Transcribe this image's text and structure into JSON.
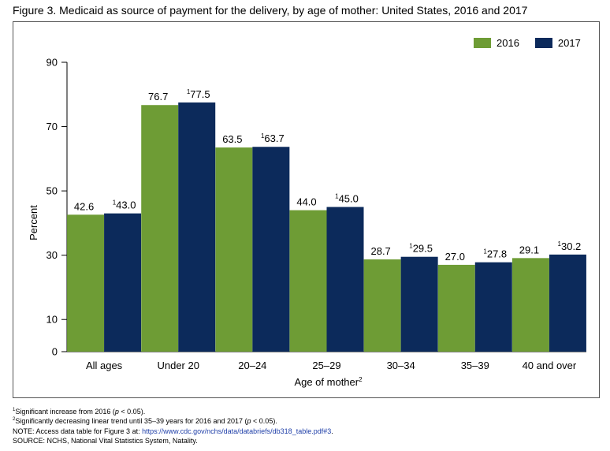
{
  "figure": {
    "title": "Figure 3. Medicaid as source of payment for the delivery, by age of mother: United States, 2016 and 2017"
  },
  "colors": {
    "series_2016": "#6e9c35",
    "series_2017": "#0c2a5b"
  },
  "chart_data": {
    "type": "bar",
    "title": "Figure 3. Medicaid as source of payment for the delivery, by age of mother: United States, 2016 and 2017",
    "xlabel": "Age of mother",
    "xlabel_sup": "2",
    "ylabel": "Percent",
    "ylim": [
      0,
      90
    ],
    "yticks": [
      0,
      10,
      30,
      50,
      70,
      90
    ],
    "categories": [
      "All ages",
      "Under 20",
      "20–24",
      "25–29",
      "30–34",
      "35–39",
      "40 and over"
    ],
    "series": [
      {
        "name": "2016",
        "values": [
          42.6,
          76.7,
          63.5,
          44.0,
          28.7,
          27.0,
          29.1
        ],
        "labels": [
          "42.6",
          "76.7",
          "63.5",
          "44.0",
          "28.7",
          "27.0",
          "29.1"
        ],
        "label_sups": [
          "",
          "",
          "",
          "",
          "",
          "",
          ""
        ]
      },
      {
        "name": "2017",
        "values": [
          43.0,
          77.5,
          63.7,
          45.0,
          29.5,
          27.8,
          30.2
        ],
        "labels": [
          "43.0",
          "77.5",
          "63.7",
          "45.0",
          "29.5",
          "27.8",
          "30.2"
        ],
        "label_sups": [
          "1",
          "1",
          "1",
          "1",
          "1",
          "1",
          "1"
        ]
      }
    ],
    "legend_position": "top-right",
    "grid": false
  },
  "footnotes": {
    "note1_marker": "1",
    "note1_text": "Significant increase from 2016 (",
    "note1_p": "p",
    "note1_tail": " < 0.05).",
    "note2_marker": "2",
    "note2_text": "Significantly decreasing linear trend until 35–39 years for 2016 and 2017 (",
    "note2_p": "p",
    "note2_tail": " < 0.05).",
    "note_prefix": "NOTE: Access data table for Figure 3 at: ",
    "note_link": "https://www.cdc.gov/nchs/data/databriefs/db318_table.pdf#3",
    "note_suffix": ".",
    "source": "SOURCE: NCHS, National Vital Statistics System, Natality."
  }
}
